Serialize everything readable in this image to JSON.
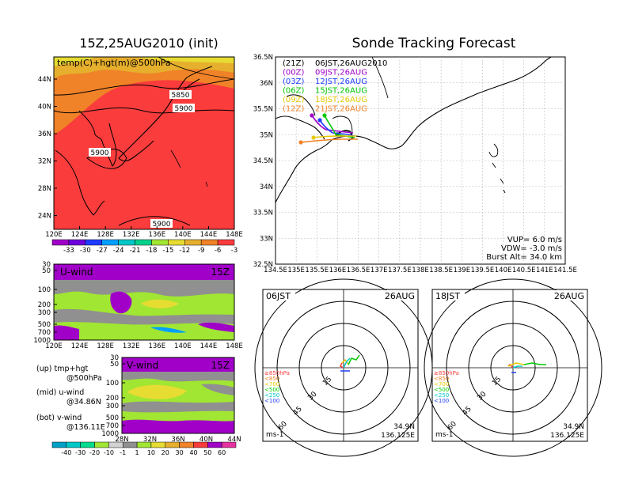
{
  "left_title": "15Z,25AUG2010 (init)",
  "right_title": "Sonde Tracking Forecast",
  "map500": {
    "label": "temp(C)+hgt(m)@500hPa",
    "lat_ticks": [
      "44N",
      "40N",
      "36N",
      "32N",
      "28N",
      "24N"
    ],
    "lon_ticks": [
      "120E",
      "124E",
      "128E",
      "132E",
      "136E",
      "140E",
      "144E",
      "148E"
    ],
    "contour_labels": [
      "5850",
      "5900",
      "5900",
      "5900"
    ],
    "colorbar_labels": [
      "-33",
      "-30",
      "-27",
      "-24",
      "-21",
      "-18",
      "-15",
      "-12",
      "-9",
      "-6",
      "-3"
    ],
    "colorbar_colors": [
      "#a000c8",
      "#6e00dc",
      "#1e3cff",
      "#00a0ff",
      "#00c8c8",
      "#00d28c",
      "#a0e632",
      "#e6dc32",
      "#e6af2d",
      "#f08228",
      "#fa3c3c"
    ]
  },
  "uwind": {
    "label": "U-wind",
    "time": "15Z",
    "pressure_ticks": [
      "30",
      "50",
      "100",
      "200",
      "300",
      "500",
      "700",
      "1000"
    ],
    "lon_ticks": [
      "120E",
      "124E",
      "128E",
      "132E",
      "136E",
      "140E",
      "144E",
      "148E"
    ]
  },
  "vwind": {
    "label": "V-wind",
    "time": "15Z",
    "pressure_ticks": [
      "30",
      "50",
      "100",
      "200",
      "300",
      "500",
      "700",
      "1000"
    ],
    "lat_ticks": [
      "28N",
      "32N",
      "36N",
      "40N",
      "44N"
    ]
  },
  "legend_notes": [
    {
      "line1": "(up) tmp+hgt",
      "line2": "@500hPa"
    },
    {
      "line1": "(mid) u-wind",
      "line2": "@34.86N"
    },
    {
      "line1": "(bot) v-wind",
      "line2": "@136.11E"
    }
  ],
  "wind_colorbar": {
    "labels": [
      "-40",
      "-30",
      "-20",
      "-10",
      "-1",
      "1",
      "10",
      "20",
      "30",
      "40",
      "50",
      "60"
    ],
    "colors": [
      "#00a0c8",
      "#00c8c8",
      "#00dc8c",
      "#a0e632",
      "#d2d2d2",
      "#909090",
      "#a0e632",
      "#e6dc32",
      "#e6af2d",
      "#f08228",
      "#fa3c3c",
      "#a000c8",
      "#e632a0"
    ]
  },
  "track_map": {
    "lat_ticks": [
      "36.5N",
      "36N",
      "35.5N",
      "35N",
      "34.5N",
      "34N",
      "33.5N",
      "33N",
      "32.5N"
    ],
    "lon_ticks": [
      "134.5E",
      "135E",
      "135.5E",
      "136E",
      "136.5E",
      "137E",
      "137.5E",
      "138E",
      "138.5E",
      "139E",
      "139.5E",
      "140E",
      "140.5E",
      "141E",
      "141.5E"
    ],
    "launches": [
      {
        "code": "(21Z)",
        "time": "06JST,26AUG2010",
        "color": "#000000"
      },
      {
        "code": "(00Z)",
        "time": "09JST,26AUG",
        "color": "#a000c8"
      },
      {
        "code": "(03Z)",
        "time": "12JST,26AUG",
        "color": "#1e3cff"
      },
      {
        "code": "(06Z)",
        "time": "15JST,26AUG",
        "color": "#00c800"
      },
      {
        "code": "(09Z)",
        "time": "18JST,26AUG",
        "color": "#e6c800"
      },
      {
        "code": "(12Z)",
        "time": "21JST,26AUG",
        "color": "#f08228"
      }
    ],
    "info": {
      "vup": "VUP=  6.0 m/s",
      "vdw": "VDW= -3.0 m/s",
      "burst": "Burst Alt= 34.0 km"
    }
  },
  "hodo_left": {
    "time": "06JST",
    "date": "26AUG",
    "unit": "ms-1",
    "ring_labels": [
      "15",
      "30",
      "45",
      "60"
    ],
    "levels": [
      {
        "label": "≥850hPa",
        "color": "#fa3c3c"
      },
      {
        "label": "<850",
        "color": "#f08228"
      },
      {
        "label": "<700",
        "color": "#e6c800"
      },
      {
        "label": "<500",
        "color": "#00c800"
      },
      {
        "label": "<250",
        "color": "#00c8c8"
      },
      {
        "label": "<100",
        "color": "#1e3cff"
      }
    ],
    "lat": "34.9N",
    "lon": "136.125E"
  },
  "hodo_right": {
    "time": "18JST",
    "date": "26AUG",
    "unit": "ms-1",
    "ring_labels": [
      "15",
      "30",
      "45",
      "60"
    ],
    "levels": [
      {
        "label": "≥850hPa",
        "color": "#fa3c3c"
      },
      {
        "label": "<850",
        "color": "#f08228"
      },
      {
        "label": "<700",
        "color": "#e6c800"
      },
      {
        "label": "<500",
        "color": "#00c800"
      },
      {
        "label": "<250",
        "color": "#00c8c8"
      },
      {
        "label": "<100",
        "color": "#1e3cff"
      }
    ],
    "lat": "34.9N",
    "lon": "136.125E"
  }
}
